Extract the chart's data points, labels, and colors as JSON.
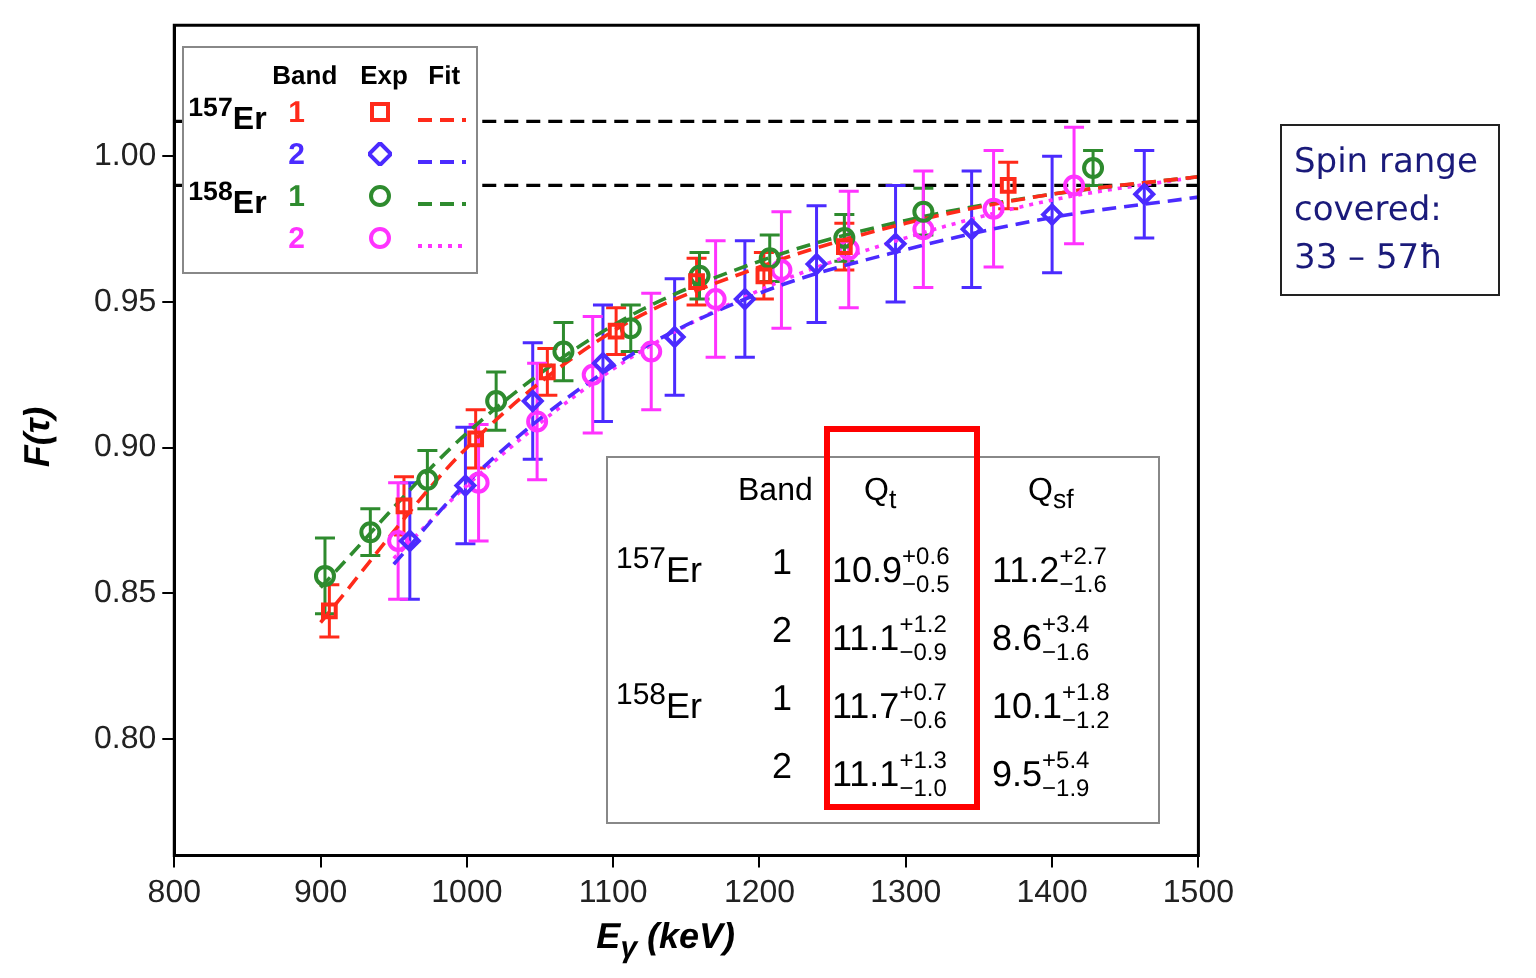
{
  "chart_data": {
    "type": "scatter",
    "xlabel": "E$_{γ}$ (keV)",
    "ylabel": "F(τ)",
    "xlim": [
      800,
      1500
    ],
    "xticks": [
      800,
      900,
      1000,
      1100,
      1200,
      1300,
      1400,
      1500
    ],
    "ylim": [
      0.76,
      1.045
    ],
    "yticks": [
      {
        "value": 0.8,
        "label": "0.80"
      },
      0.85,
      {
        "value": 0.9,
        "label": "0.90"
      },
      0.95,
      {
        "value": 1.0,
        "label": "1.00"
      }
    ],
    "grid": false,
    "legend": "top left",
    "legend_title": "Band",
    "series": [
      {
        "name": "1",
        "type": "scatter",
        "marker": "square",
        "color": "#ff2a1a",
        "x": [
          906,
          957,
          1006,
          1055,
          1102,
          1157,
          1203,
          1258,
          1370
        ],
        "values": [
          0.844,
          0.88,
          0.903,
          0.926,
          0.94,
          0.957,
          0.959,
          0.969,
          0.99
        ],
        "errors": [
          0.009,
          0.01,
          0.01,
          0.008,
          0.008,
          0.008,
          0.008,
          0.008,
          0.008
        ]
      },
      {
        "name": "2",
        "type": "scatter",
        "marker": "diamond",
        "color": "#4b2bff",
        "x": [
          961,
          999,
          1045,
          1093,
          1142,
          1190,
          1239,
          1293,
          1345,
          1400,
          1463
        ],
        "values": [
          0.868,
          0.887,
          0.916,
          0.929,
          0.938,
          0.951,
          0.963,
          0.97,
          0.975,
          0.98,
          0.987
        ],
        "errors": [
          0.02,
          0.02,
          0.02,
          0.02,
          0.02,
          0.02,
          0.02,
          0.02,
          0.02,
          0.02,
          0.015
        ]
      },
      {
        "name": "1",
        "type": "scatter",
        "marker": "circle",
        "color": "#2e8b2e",
        "x": [
          903,
          934,
          973,
          1020,
          1066,
          1112,
          1159,
          1207,
          1258,
          1312,
          1428
        ],
        "values": [
          0.856,
          0.871,
          0.889,
          0.916,
          0.933,
          0.941,
          0.959,
          0.965,
          0.972,
          0.981,
          0.996
        ],
        "errors": [
          0.013,
          0.008,
          0.01,
          0.01,
          0.01,
          0.008,
          0.008,
          0.008,
          0.008,
          0.008,
          0.006
        ]
      },
      {
        "name": "2",
        "type": "scatter",
        "marker": "circle",
        "color": "#ff33ff",
        "x": [
          953,
          1008,
          1048,
          1086,
          1126,
          1170,
          1215,
          1261,
          1312,
          1360,
          1415
        ],
        "values": [
          0.868,
          0.888,
          0.909,
          0.925,
          0.933,
          0.951,
          0.961,
          0.968,
          0.975,
          0.982,
          0.99
        ],
        "errors": [
          0.02,
          0.02,
          0.02,
          0.02,
          0.02,
          0.02,
          0.02,
          0.02,
          0.02,
          0.02,
          0.02
        ]
      },
      {
        "type": "line",
        "marker": "none",
        "line_style": "dashed",
        "color": "#ff2a1a",
        "x": [
          900,
          1000,
          1100,
          1200,
          1300,
          1400,
          1500
        ],
        "values": [
          0.84,
          0.9,
          0.94,
          0.962,
          0.977,
          0.987,
          0.993
        ]
      },
      {
        "type": "line",
        "marker": "none",
        "line_style": "dashed",
        "color": "#4b2bff",
        "x": [
          950,
          1000,
          1100,
          1200,
          1300,
          1400,
          1500
        ],
        "values": [
          0.86,
          0.888,
          0.928,
          0.953,
          0.968,
          0.979,
          0.986
        ]
      },
      {
        "type": "line",
        "marker": "none",
        "line_style": "dashed",
        "color": "#2e8b2e",
        "x": [
          900,
          1000,
          1100,
          1200,
          1300,
          1400,
          1500
        ],
        "values": [
          0.852,
          0.905,
          0.942,
          0.964,
          0.978,
          0.987,
          0.993
        ]
      },
      {
        "type": "line",
        "marker": "none",
        "line_style": "dotted",
        "color": "#ff33ff",
        "x": [
          950,
          1000,
          1100,
          1200,
          1300,
          1400,
          1500
        ],
        "values": [
          0.862,
          0.887,
          0.927,
          0.954,
          0.972,
          0.985,
          0.993
        ]
      }
    ],
    "ref_lines": [
      {
        "axis": "y",
        "value": 1.012,
        "color": "#000000",
        "line_style": "dashed"
      },
      {
        "axis": "y",
        "value": 0.99,
        "color": "#000000",
        "line_style": "dashed"
      }
    ],
    "annotations": [
      "Exp",
      "Fit",
      "$^{157}$Er",
      "$^{158}$Er",
      "Spin range covered: 33 – 57ħ",
      "Band",
      "Q$_{t}$",
      "Q$_{sf}$",
      "$^{157}$Er",
      "1",
      "10.9$^{+0.6}$$_{−0.5}$",
      "11.2$^{+2.7}$$_{−1.6}$",
      "2",
      "11.1$^{+1.2}$$_{−0.9}$",
      "8.6$^{+3.4}$$_{−1.6}$",
      "$^{158}$Er",
      "1",
      "11.7$^{+0.7}$$_{−0.6}$",
      "10.1$^{+1.8}$$_{−1.2}$",
      "2",
      "11.1$^{+1.3}$$_{−1.0}$",
      "9.5$^{+5.4}$$_{−1.9}$"
    ]
  }
}
